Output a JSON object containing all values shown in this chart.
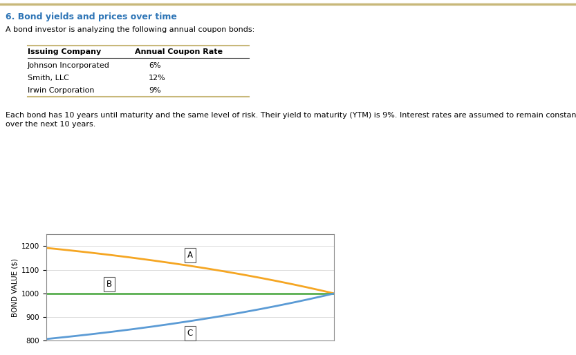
{
  "title": "6. Bond yields and prices over time",
  "subtitle_line1": "A bond investor is analyzing the following annual coupon bonds:",
  "table_headers": [
    "Issuing Company",
    "Annual Coupon Rate"
  ],
  "table_rows": [
    [
      "Johnson Incorporated",
      "6%"
    ],
    [
      "Smith, LLC",
      "12%"
    ],
    [
      "Irwin Corporation",
      "9%"
    ]
  ],
  "body_text_1": "Each bond has 10 years until maturity and the same level of risk. Their yield to maturity (YTM) is 9%. Interest rates are assumed to remain constant",
  "body_text_2": "over the next 10 years.",
  "ytm": 0.09,
  "face_value": 1000,
  "maturity": 10,
  "coupon_rates": [
    0.12,
    0.09,
    0.06
  ],
  "bond_labels": [
    "A",
    "B",
    "C"
  ],
  "bond_colors": [
    "#F5A623",
    "#5AAF50",
    "#5B9BD5"
  ],
  "ylabel": "BOND VALUE ($)",
  "ylim": [
    800,
    1250
  ],
  "yticks": [
    800,
    900,
    1000,
    1100,
    1200
  ],
  "title_color": "#2E75B6",
  "title_fontsize": 9,
  "body_fontsize": 8,
  "table_header_fontsize": 8,
  "table_row_fontsize": 8,
  "background_color": "#FFFFFF",
  "chart_bg_color": "#FFFFFF",
  "grid_color": "#CCCCCC",
  "border_color": "#C8B87A"
}
